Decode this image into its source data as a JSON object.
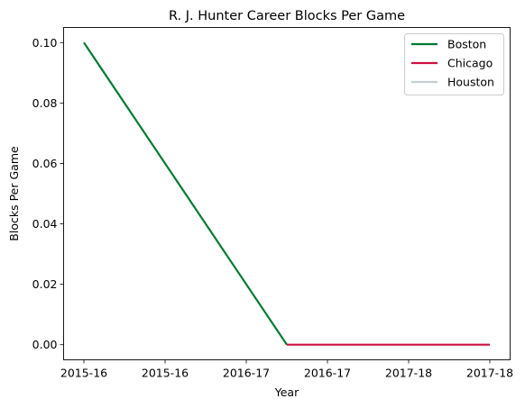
{
  "chart_data": {
    "type": "line",
    "title": "R. J. Hunter Career Blocks Per Game",
    "xlabel": "Year",
    "ylabel": "Blocks Per Game",
    "x_tick_labels": [
      "2015-16",
      "2015-16",
      "2016-17",
      "2016-17",
      "2017-18",
      "2017-18"
    ],
    "y_ticks": [
      0.0,
      0.02,
      0.04,
      0.06,
      0.08,
      0.1
    ],
    "y_tick_labels": [
      "0.00",
      "0.02",
      "0.04",
      "0.06",
      "0.08",
      "0.10"
    ],
    "ylim": [
      -0.005,
      0.105
    ],
    "xlim": [
      -0.25,
      5.25
    ],
    "legend_position": "top-right",
    "series": [
      {
        "name": "Boston",
        "color": "#007A33",
        "points": [
          {
            "x": 0,
            "y": 0.1
          },
          {
            "x": 2.5,
            "y": 0.0
          }
        ]
      },
      {
        "name": "Chicago",
        "color": "#CE1141",
        "points": [
          {
            "x": 2.5,
            "y": 0.0
          },
          {
            "x": 5,
            "y": 0.0
          }
        ]
      },
      {
        "name": "Houston",
        "color": "#C4CED4",
        "points": []
      }
    ]
  }
}
